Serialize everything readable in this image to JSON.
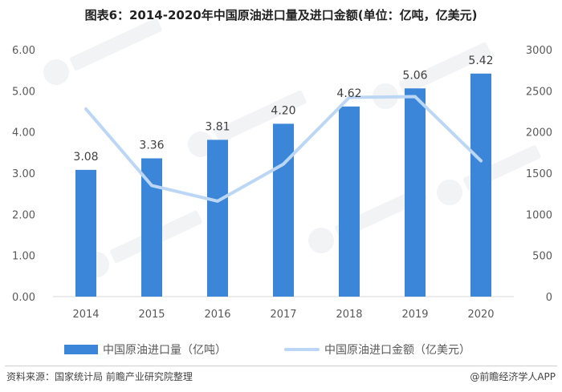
{
  "title": "图表6：2014-2020年中国原油进口量及进口金额(单位：亿吨，亿美元)",
  "source": "资料来源：国家统计局 前瞻产业研究院整理",
  "credit": "@前瞻经济学人APP",
  "colors": {
    "bar": "#3b86d9",
    "line": "#bcd7f5"
  },
  "chart_data": {
    "type": "bar+line",
    "categories": [
      "2014",
      "2015",
      "2016",
      "2017",
      "2018",
      "2019",
      "2020"
    ],
    "series": [
      {
        "name": "中国原油进口量（亿吨）",
        "type": "bar",
        "axis": "left",
        "values": [
          3.08,
          3.36,
          3.81,
          4.2,
          4.62,
          5.06,
          5.42
        ],
        "labels": [
          "3.08",
          "3.36",
          "3.81",
          "4.20",
          "4.62",
          "5.06",
          "5.42"
        ]
      },
      {
        "name": "中国原油进口金额（亿美元）",
        "type": "line",
        "axis": "right",
        "values": [
          2280,
          1350,
          1160,
          1610,
          2420,
          2430,
          1650
        ]
      }
    ],
    "y_left": {
      "min": 0,
      "max": 6,
      "ticks": [
        "0.00",
        "1.00",
        "2.00",
        "3.00",
        "4.00",
        "5.00",
        "6.00"
      ]
    },
    "y_right": {
      "min": 0,
      "max": 3000,
      "ticks": [
        "0",
        "500",
        "1000",
        "1500",
        "2000",
        "2500",
        "3000"
      ]
    },
    "grid": false,
    "legend_position": "bottom"
  }
}
